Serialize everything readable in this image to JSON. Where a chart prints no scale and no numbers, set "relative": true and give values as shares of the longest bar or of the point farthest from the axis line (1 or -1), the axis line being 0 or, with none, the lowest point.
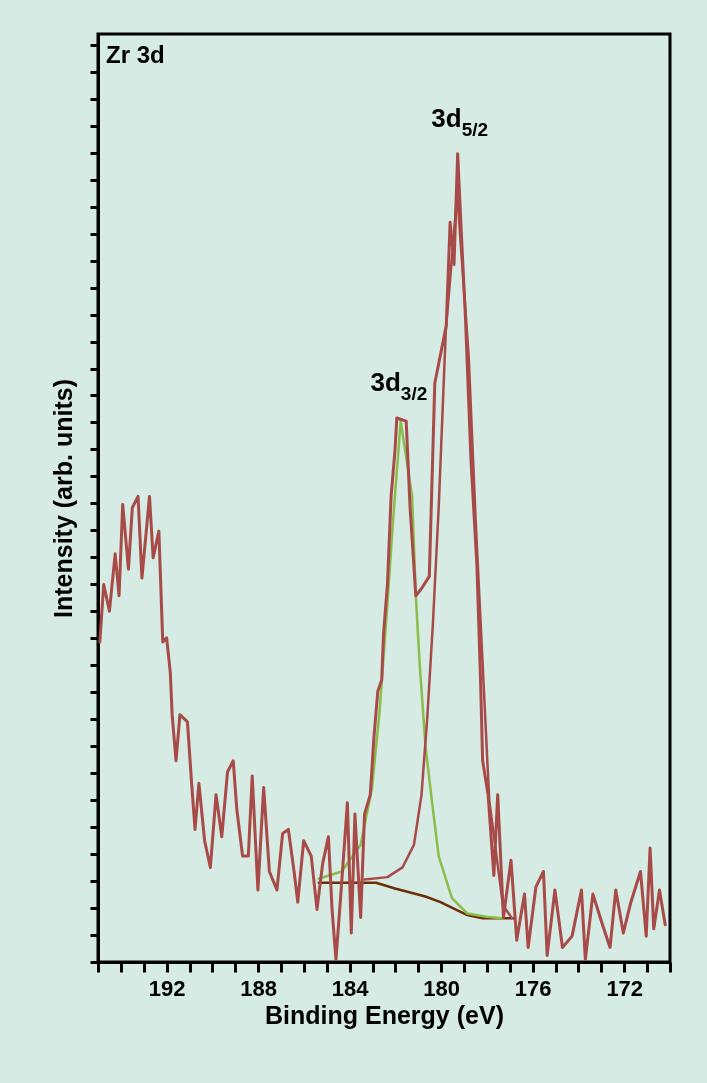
{
  "chart_data": {
    "type": "line",
    "relative": true,
    "xlabel": "Binding Energy (eV)",
    "ylabel": "Intensity (arb. units)",
    "xlim": [
      195,
      170
    ],
    "xticks": [
      {
        "value": 195,
        "label": null
      },
      {
        "value": 194,
        "label": null
      },
      {
        "value": 193,
        "label": null
      },
      192,
      {
        "value": 191,
        "label": null
      },
      {
        "value": 190,
        "label": null
      },
      {
        "value": 189,
        "label": null
      },
      188,
      {
        "value": 187,
        "label": null
      },
      {
        "value": 186,
        "label": null
      },
      {
        "value": 185,
        "label": null
      },
      184,
      {
        "value": 183,
        "label": null
      },
      {
        "value": 182,
        "label": null
      },
      {
        "value": 181,
        "label": null
      },
      180,
      {
        "value": 179,
        "label": null
      },
      {
        "value": 178,
        "label": null
      },
      {
        "value": 177,
        "label": null
      },
      176,
      {
        "value": 175,
        "label": null
      },
      {
        "value": 174,
        "label": null
      },
      {
        "value": 173,
        "label": null
      },
      172,
      {
        "value": 171,
        "label": null
      },
      {
        "value": 170,
        "label": null
      }
    ],
    "annotations": [
      "Zr 3d",
      {
        "text": "3d$_{5/2}$",
        "x": 179.28,
        "y": 1.0
      },
      {
        "text": "3d$_{3/2}$",
        "x": 181.94,
        "y": 0.673
      }
    ],
    "series": [
      {
        "color": "#6b2e0a",
        "x": [
          185.35,
          182.85,
          182.02,
          180.69,
          180.03,
          178.86,
          178.19,
          176.86
        ],
        "values": [
          0.098,
          0.098,
          0.091,
          0.081,
          0.074,
          0.058,
          0.054,
          0.054
        ]
      },
      {
        "color": "#8bbd4a",
        "x": [
          185.35,
          184.35,
          183.52,
          183.02,
          182.69,
          182.35,
          182.1,
          181.77,
          181.27,
          181.11,
          180.94,
          180.69,
          180.44,
          180.11,
          179.53,
          178.86,
          178.03,
          177.36
        ],
        "values": [
          0.103,
          0.112,
          0.145,
          0.216,
          0.311,
          0.443,
          0.548,
          0.669,
          0.576,
          0.453,
          0.368,
          0.268,
          0.207,
          0.131,
          0.079,
          0.06,
          0.056,
          0.054
        ]
      },
      {
        "color": "#a84a48",
        "x": [
          183.35,
          182.35,
          181.69,
          181.19,
          180.86,
          180.61,
          180.36,
          180.11,
          179.8,
          179.3,
          178.8,
          178.5,
          177.9,
          177.3,
          176.9
        ],
        "values": [
          0.102,
          0.105,
          0.117,
          0.145,
          0.207,
          0.302,
          0.42,
          0.562,
          0.78,
          0.95,
          0.75,
          0.55,
          0.2,
          0.07,
          0.054
        ]
      },
      {
        "color": "#a84a48",
        "x": [
          194.92,
          194.75,
          194.5,
          194.25,
          194.08,
          193.92,
          193.67,
          193.5,
          193.25,
          193.08,
          192.75,
          192.59,
          192.34,
          192.17,
          192.0,
          191.84,
          191.76,
          191.59,
          191.42,
          191.09,
          190.92,
          190.76,
          190.59,
          190.34,
          190.09,
          189.84,
          189.59,
          189.34,
          189.09,
          188.93,
          188.68,
          188.43,
          188.26,
          188.01,
          187.76,
          187.51,
          187.18,
          186.93,
          186.68,
          186.43,
          186.27,
          186.01,
          185.68,
          185.43,
          185.18,
          184.93,
          184.77,
          184.6,
          184.35,
          184.1,
          183.93,
          183.77,
          183.52,
          183.35,
          183.1,
          182.94,
          182.77,
          182.6,
          182.52,
          182.35,
          182.19,
          182.02,
          181.94,
          181.53,
          181.36,
          181.11,
          180.86,
          180.52,
          180.28,
          179.78,
          179.61,
          179.44,
          179.28,
          179.11,
          178.94,
          178.7,
          178.44,
          178.28,
          178.19,
          177.95,
          177.7,
          177.53,
          177.28,
          176.95,
          176.7,
          176.36,
          176.2,
          175.86,
          175.53,
          175.37,
          175.03,
          174.7,
          174.28,
          173.87,
          173.7,
          173.37,
          172.95,
          172.62,
          172.37,
          172.04,
          171.71,
          171.29,
          171.04,
          170.87,
          170.71,
          170.46,
          170.21
        ],
        "values": [
          0.396,
          0.467,
          0.434,
          0.505,
          0.453,
          0.566,
          0.486,
          0.562,
          0.576,
          0.475,
          0.576,
          0.5,
          0.533,
          0.396,
          0.401,
          0.358,
          0.306,
          0.249,
          0.306,
          0.297,
          0.226,
          0.164,
          0.221,
          0.15,
          0.117,
          0.207,
          0.155,
          0.235,
          0.249,
          0.188,
          0.131,
          0.131,
          0.23,
          0.089,
          0.216,
          0.112,
          0.089,
          0.159,
          0.164,
          0.112,
          0.074,
          0.15,
          0.131,
          0.065,
          0.122,
          0.155,
          0.065,
          0.003,
          0.098,
          0.197,
          0.036,
          0.183,
          0.055,
          0.183,
          0.207,
          0.278,
          0.335,
          0.349,
          0.406,
          0.467,
          0.576,
          0.633,
          0.673,
          0.669,
          0.562,
          0.453,
          0.462,
          0.477,
          0.716,
          0.787,
          0.915,
          0.863,
          1.0,
          0.896,
          0.797,
          0.622,
          0.491,
          0.349,
          0.249,
          0.207,
          0.107,
          0.207,
          0.055,
          0.126,
          0.027,
          0.084,
          0.018,
          0.093,
          0.112,
          0.008,
          0.089,
          0.018,
          0.032,
          0.089,
          0.003,
          0.084,
          0.046,
          0.018,
          0.089,
          0.036,
          0.074,
          0.112,
          0.032,
          0.141,
          0.041,
          0.089,
          0.046
        ]
      }
    ]
  }
}
